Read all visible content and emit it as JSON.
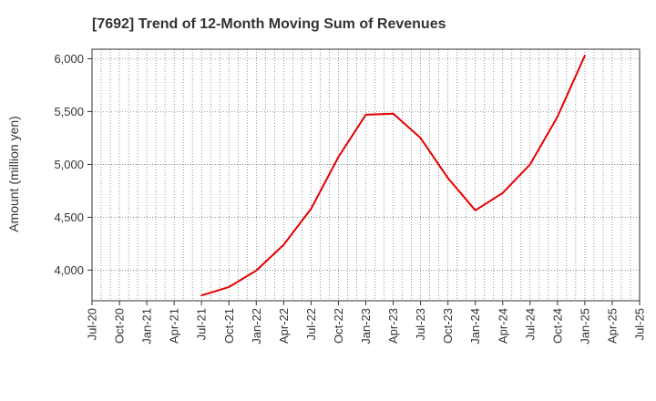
{
  "chart_data": {
    "type": "line",
    "title": "[7692]  Trend of 12-Month Moving Sum of Revenues",
    "xlabel": "",
    "ylabel": "Amount (million yen)",
    "x_tick_labels": [
      "Jul-20",
      "Oct-20",
      "Jan-21",
      "Apr-21",
      "Jul-21",
      "Oct-21",
      "Jan-22",
      "Apr-22",
      "Jul-22",
      "Oct-22",
      "Jan-23",
      "Apr-23",
      "Jul-23",
      "Oct-23",
      "Jan-24",
      "Apr-24",
      "Jul-24",
      "Oct-24",
      "Jan-25",
      "Apr-25",
      "Jul-25"
    ],
    "y_ticks": [
      4000,
      4500,
      5000,
      5500,
      6000
    ],
    "y_tick_labels": [
      "4,000",
      "4,500",
      "5,000",
      "5,500",
      "6,000"
    ],
    "ylim": [
      3710,
      6090
    ],
    "xlim": [
      "Jul-20",
      "Jul-25"
    ],
    "grid": true,
    "series": [
      {
        "color": "#e60000",
        "x": [
          "Jul-21",
          "Oct-21",
          "Jan-22",
          "Apr-22",
          "Jul-22",
          "Oct-22",
          "Jan-23",
          "Apr-23",
          "Jul-23",
          "Oct-23",
          "Jan-24",
          "Apr-24",
          "Jul-24",
          "Oct-24",
          "Jan-25"
        ],
        "values": [
          3760,
          3840,
          3995,
          4240,
          4580,
          5070,
          5470,
          5480,
          5250,
          4870,
          4565,
          4730,
          5000,
          5450,
          6030
        ]
      }
    ]
  }
}
